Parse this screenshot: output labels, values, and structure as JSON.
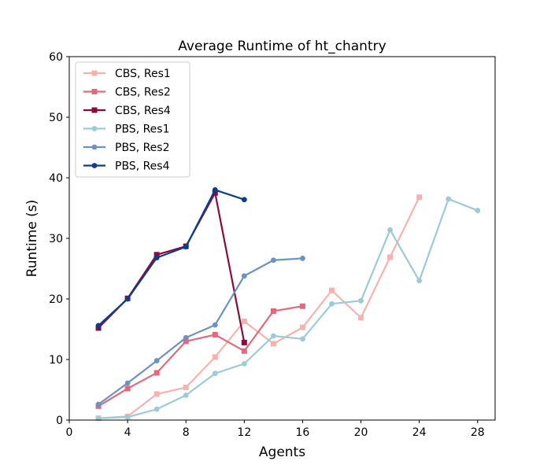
{
  "chart_data": {
    "type": "line",
    "title": "Average Runtime of ht_chantry",
    "xlabel": "Agents",
    "ylabel": "Runtime (s)",
    "xlim": [
      0,
      29.2
    ],
    "ylim": [
      0,
      60
    ],
    "xticks": [
      0,
      4,
      8,
      12,
      16,
      20,
      24,
      28
    ],
    "yticks": [
      0,
      10,
      20,
      30,
      40,
      50,
      60
    ],
    "grid": false,
    "legend_position": "top-left",
    "series": [
      {
        "name": "CBS, Res1",
        "color": "#f7b3ab",
        "marker": "square",
        "x": [
          2,
          4,
          6,
          8,
          10,
          12,
          14,
          16,
          18,
          20,
          22,
          24
        ],
        "y": [
          0.3,
          0.6,
          4.3,
          5.4,
          10.4,
          16.3,
          12.6,
          15.3,
          21.4,
          16.9,
          26.9,
          36.8
        ]
      },
      {
        "name": "CBS, Res2",
        "color": "#e3687a",
        "marker": "square",
        "x": [
          2,
          4,
          6,
          8,
          10,
          12,
          14,
          16
        ],
        "y": [
          2.3,
          5.2,
          7.8,
          13.0,
          14.1,
          11.4,
          18.0,
          18.8
        ]
      },
      {
        "name": "CBS, Res4",
        "color": "#8b0a3a",
        "marker": "square",
        "x": [
          2,
          4,
          6,
          8,
          10,
          12
        ],
        "y": [
          15.2,
          20.1,
          27.3,
          28.7,
          37.5,
          12.8
        ]
      },
      {
        "name": "PBS, Res1",
        "color": "#9ccbd5",
        "marker": "circle",
        "x": [
          2,
          4,
          6,
          8,
          10,
          12,
          14,
          16,
          18,
          20,
          22,
          24,
          26,
          28
        ],
        "y": [
          0.3,
          0.5,
          1.8,
          4.1,
          7.7,
          9.3,
          13.9,
          13.4,
          19.2,
          19.7,
          31.4,
          23.0,
          36.5,
          34.6
        ]
      },
      {
        "name": "PBS, Res2",
        "color": "#6b93c2",
        "marker": "circle",
        "x": [
          2,
          4,
          6,
          8,
          10,
          12,
          14,
          16
        ],
        "y": [
          2.6,
          6.1,
          9.8,
          13.6,
          15.7,
          23.8,
          26.4,
          26.7
        ]
      },
      {
        "name": "PBS, Res4",
        "color": "#0c3c8c",
        "marker": "circle",
        "x": [
          2,
          4,
          6,
          8,
          10,
          12
        ],
        "y": [
          15.6,
          20.0,
          26.8,
          28.6,
          38.0,
          36.4
        ]
      }
    ]
  }
}
